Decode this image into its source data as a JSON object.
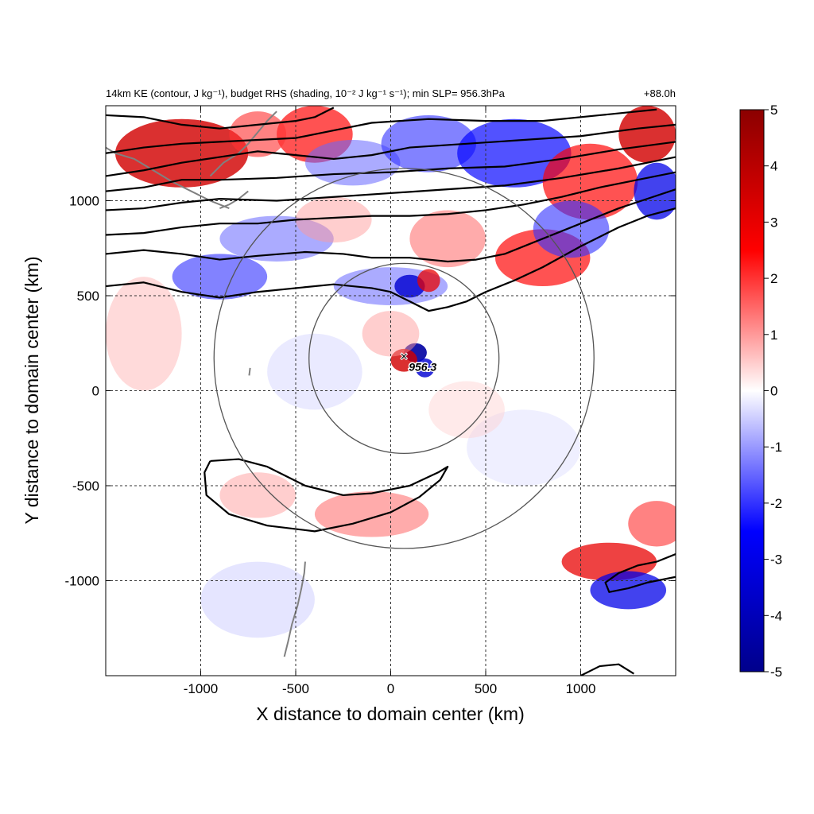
{
  "chart_data": {
    "type": "heatmap",
    "title": "14km KE (contour, J kg⁻¹), budget RHS (shading, 10⁻² J kg⁻¹ s⁻¹); min SLP= 956.3hPa",
    "lead_time": "+88.0h",
    "xlabel": "X distance to domain center (km)",
    "ylabel": "Y distance to domain center (km)",
    "xlim": [
      -1500,
      1500
    ],
    "ylim": [
      -1500,
      1500
    ],
    "x_ticks": [
      -1000,
      -500,
      0,
      500,
      1000
    ],
    "x_tick_labels": [
      "-1000",
      "-500",
      "0",
      "500",
      "1000"
    ],
    "y_ticks": [
      -1000,
      -500,
      0,
      500,
      1000
    ],
    "y_tick_labels": [
      "-1000",
      "-500",
      "0",
      "500",
      "1000"
    ],
    "grid": true,
    "colorbar": {
      "min": -5,
      "max": 5,
      "ticks": [
        5,
        4,
        3,
        2,
        1,
        0,
        -1,
        -2,
        -3,
        -4,
        -5
      ],
      "tick_labels": [
        "5",
        "4",
        "3",
        "2",
        "1",
        "0",
        "-1",
        "-2",
        "-3",
        "-4",
        "-5"
      ],
      "colormap": [
        "#00008b",
        "#0000ff",
        "#ffffff",
        "#ff0000",
        "#8b0000"
      ]
    },
    "storm_center": {
      "x": 70,
      "y": 180,
      "label": "956.3",
      "marker": "×"
    },
    "range_circles_km": [
      {
        "cx": 70,
        "cy": 170,
        "r": 500
      },
      {
        "cx": 70,
        "cy": 170,
        "r": 1000
      }
    ],
    "shading_features": [
      {
        "cx": -1100,
        "cy": 1250,
        "sx": 350,
        "sy": 180,
        "v": 3.5
      },
      {
        "cx": -400,
        "cy": 1350,
        "sx": 200,
        "sy": 150,
        "v": 2.5
      },
      {
        "cx": -700,
        "cy": 1350,
        "sx": 150,
        "sy": 120,
        "v": 2.0
      },
      {
        "cx": -200,
        "cy": 1200,
        "sx": 250,
        "sy": 120,
        "v": -1.5
      },
      {
        "cx": 200,
        "cy": 1300,
        "sx": 250,
        "sy": 150,
        "v": -2.0
      },
      {
        "cx": 650,
        "cy": 1250,
        "sx": 300,
        "sy": 180,
        "v": -2.5
      },
      {
        "cx": 1050,
        "cy": 1100,
        "sx": 250,
        "sy": 200,
        "v": 2.5
      },
      {
        "cx": 1350,
        "cy": 1350,
        "sx": 150,
        "sy": 150,
        "v": 3.5
      },
      {
        "cx": 1400,
        "cy": 1050,
        "sx": 120,
        "sy": 150,
        "v": -3.0
      },
      {
        "cx": 800,
        "cy": 700,
        "sx": 250,
        "sy": 150,
        "v": 2.5
      },
      {
        "cx": 950,
        "cy": 850,
        "sx": 200,
        "sy": 150,
        "v": -2.0
      },
      {
        "cx": -600,
        "cy": 800,
        "sx": 300,
        "sy": 120,
        "v": -1.5
      },
      {
        "cx": -900,
        "cy": 600,
        "sx": 250,
        "sy": 120,
        "v": -2.0
      },
      {
        "cx": 0,
        "cy": 550,
        "sx": 300,
        "sy": 100,
        "v": -1.5
      },
      {
        "cx": 100,
        "cy": 550,
        "sx": 80,
        "sy": 60,
        "v": -3.5
      },
      {
        "cx": 200,
        "cy": 580,
        "sx": 60,
        "sy": 60,
        "v": 3.0
      },
      {
        "cx": 300,
        "cy": 800,
        "sx": 200,
        "sy": 150,
        "v": 1.5
      },
      {
        "cx": -300,
        "cy": 900,
        "sx": 200,
        "sy": 120,
        "v": 1.0
      },
      {
        "cx": 130,
        "cy": 200,
        "sx": 60,
        "sy": 50,
        "v": -4.5
      },
      {
        "cx": 70,
        "cy": 160,
        "sx": 70,
        "sy": 60,
        "v": 3.5
      },
      {
        "cx": 180,
        "cy": 120,
        "sx": 50,
        "sy": 50,
        "v": -3.5
      },
      {
        "cx": 0,
        "cy": 300,
        "sx": 150,
        "sy": 120,
        "v": 1.0
      },
      {
        "cx": -100,
        "cy": -650,
        "sx": 300,
        "sy": 120,
        "v": 1.5
      },
      {
        "cx": -700,
        "cy": -550,
        "sx": 200,
        "sy": 120,
        "v": 1.0
      },
      {
        "cx": 1150,
        "cy": -900,
        "sx": 250,
        "sy": 100,
        "v": 3.0
      },
      {
        "cx": 1250,
        "cy": -1050,
        "sx": 200,
        "sy": 100,
        "v": -3.0
      },
      {
        "cx": 1400,
        "cy": -700,
        "sx": 150,
        "sy": 120,
        "v": 2.0
      },
      {
        "cx": -1300,
        "cy": 300,
        "sx": 200,
        "sy": 300,
        "v": 0.8
      },
      {
        "cx": -700,
        "cy": -1100,
        "sx": 300,
        "sy": 200,
        "v": -0.6
      },
      {
        "cx": 700,
        "cy": -300,
        "sx": 300,
        "sy": 200,
        "v": -0.4
      },
      {
        "cx": 400,
        "cy": -100,
        "sx": 200,
        "sy": 150,
        "v": 0.5
      },
      {
        "cx": -400,
        "cy": 100,
        "sx": 250,
        "sy": 200,
        "v": -0.5
      }
    ],
    "ke_contours": [
      [
        [
          -1500,
          550
        ],
        [
          -1300,
          570
        ],
        [
          -1100,
          520
        ],
        [
          -900,
          490
        ],
        [
          -700,
          520
        ],
        [
          -500,
          540
        ],
        [
          -300,
          560
        ],
        [
          -100,
          540
        ],
        [
          0,
          520
        ],
        [
          100,
          470
        ],
        [
          200,
          420
        ],
        [
          300,
          440
        ],
        [
          400,
          470
        ],
        [
          500,
          520
        ],
        [
          650,
          580
        ],
        [
          800,
          650
        ],
        [
          1000,
          760
        ],
        [
          1200,
          860
        ],
        [
          1350,
          920
        ],
        [
          1500,
          960
        ]
      ],
      [
        [
          -1500,
          720
        ],
        [
          -1300,
          740
        ],
        [
          -1100,
          720
        ],
        [
          -900,
          690
        ],
        [
          -700,
          710
        ],
        [
          -450,
          730
        ],
        [
          -250,
          720
        ],
        [
          -100,
          700
        ],
        [
          100,
          700
        ],
        [
          300,
          680
        ],
        [
          450,
          690
        ],
        [
          600,
          720
        ],
        [
          800,
          800
        ],
        [
          1000,
          880
        ],
        [
          1200,
          960
        ],
        [
          1350,
          1010
        ],
        [
          1500,
          1060
        ]
      ],
      [
        [
          -1500,
          820
        ],
        [
          -1300,
          830
        ],
        [
          -1100,
          860
        ],
        [
          -900,
          880
        ],
        [
          -700,
          880
        ],
        [
          -500,
          900
        ],
        [
          -300,
          910
        ],
        [
          -100,
          920
        ],
        [
          100,
          920
        ],
        [
          300,
          930
        ],
        [
          500,
          950
        ],
        [
          700,
          980
        ],
        [
          900,
          1020
        ],
        [
          1100,
          1070
        ],
        [
          1300,
          1110
        ],
        [
          1500,
          1150
        ]
      ],
      [
        [
          -1500,
          950
        ],
        [
          -1300,
          960
        ],
        [
          -1100,
          990
        ],
        [
          -900,
          1010
        ],
        [
          -600,
          1000
        ],
        [
          -300,
          1020
        ],
        [
          0,
          1040
        ],
        [
          300,
          1060
        ],
        [
          600,
          1080
        ],
        [
          900,
          1120
        ],
        [
          1200,
          1170
        ],
        [
          1500,
          1230
        ]
      ],
      [
        [
          -1500,
          1050
        ],
        [
          -1300,
          1070
        ],
        [
          -1100,
          1110
        ],
        [
          -900,
          1110
        ],
        [
          -600,
          1120
        ],
        [
          -300,
          1140
        ],
        [
          0,
          1150
        ],
        [
          300,
          1170
        ],
        [
          600,
          1180
        ],
        [
          900,
          1220
        ],
        [
          1200,
          1270
        ],
        [
          1500,
          1310
        ]
      ],
      [
        [
          -1500,
          1130
        ],
        [
          -1300,
          1160
        ],
        [
          -1100,
          1200
        ],
        [
          -900,
          1230
        ],
        [
          -700,
          1260
        ],
        [
          -500,
          1240
        ],
        [
          -300,
          1220
        ],
        [
          -100,
          1240
        ],
        [
          100,
          1280
        ],
        [
          400,
          1300
        ],
        [
          700,
          1320
        ],
        [
          1000,
          1340
        ],
        [
          1300,
          1380
        ],
        [
          1500,
          1400
        ]
      ],
      [
        [
          -1500,
          1250
        ],
        [
          -1300,
          1280
        ],
        [
          -1100,
          1300
        ],
        [
          -900,
          1310
        ],
        [
          -700,
          1320
        ],
        [
          -500,
          1330
        ],
        [
          -300,
          1370
        ],
        [
          -100,
          1410
        ],
        [
          200,
          1430
        ],
        [
          500,
          1420
        ],
        [
          800,
          1420
        ],
        [
          1100,
          1450
        ],
        [
          1400,
          1480
        ]
      ],
      [
        [
          -1500,
          1450
        ],
        [
          -1300,
          1440
        ],
        [
          -1100,
          1400
        ],
        [
          -900,
          1380
        ],
        [
          -700,
          1400
        ],
        [
          -500,
          1420
        ],
        [
          -400,
          1440
        ],
        [
          -300,
          1490
        ]
      ],
      [
        [
          -950,
          -370
        ],
        [
          -800,
          -360
        ],
        [
          -650,
          -400
        ],
        [
          -450,
          -500
        ],
        [
          -250,
          -550
        ],
        [
          -100,
          -540
        ],
        [
          100,
          -500
        ],
        [
          250,
          -430
        ],
        [
          300,
          -400
        ],
        [
          260,
          -470
        ],
        [
          150,
          -560
        ],
        [
          0,
          -640
        ],
        [
          -200,
          -700
        ],
        [
          -400,
          -740
        ],
        [
          -650,
          -710
        ],
        [
          -850,
          -650
        ],
        [
          -970,
          -550
        ],
        [
          -980,
          -430
        ],
        [
          -950,
          -370
        ]
      ],
      [
        [
          1500,
          -860
        ],
        [
          1400,
          -900
        ],
        [
          1300,
          -920
        ],
        [
          1200,
          -960
        ],
        [
          1130,
          -1010
        ],
        [
          1150,
          -1060
        ],
        [
          1250,
          -1040
        ],
        [
          1350,
          -1010
        ],
        [
          1450,
          -990
        ],
        [
          1500,
          -980
        ]
      ],
      [
        [
          1000,
          -1500
        ],
        [
          1100,
          -1450
        ],
        [
          1200,
          -1440
        ],
        [
          1280,
          -1490
        ]
      ]
    ],
    "coastlines": [
      [
        [
          -1500,
          1280
        ],
        [
          -1450,
          1250
        ],
        [
          -1350,
          1220
        ],
        [
          -1250,
          1160
        ],
        [
          -1150,
          1100
        ],
        [
          -1050,
          1050
        ],
        [
          -950,
          1000
        ],
        [
          -850,
          960
        ]
      ],
      [
        [
          -950,
          1130
        ],
        [
          -880,
          1200
        ],
        [
          -800,
          1250
        ],
        [
          -750,
          1300
        ],
        [
          -700,
          1360
        ],
        [
          -650,
          1420
        ],
        [
          -600,
          1470
        ]
      ],
      [
        [
          -750,
          1050
        ],
        [
          -800,
          1010
        ],
        [
          -850,
          980
        ],
        [
          -900,
          960
        ]
      ],
      [
        [
          -740,
          120
        ],
        [
          -745,
          80
        ]
      ],
      [
        [
          -450,
          -900
        ],
        [
          -455,
          -960
        ],
        [
          -470,
          -1040
        ],
        [
          -490,
          -1130
        ],
        [
          -520,
          -1230
        ],
        [
          -540,
          -1320
        ],
        [
          -560,
          -1400
        ]
      ]
    ]
  }
}
